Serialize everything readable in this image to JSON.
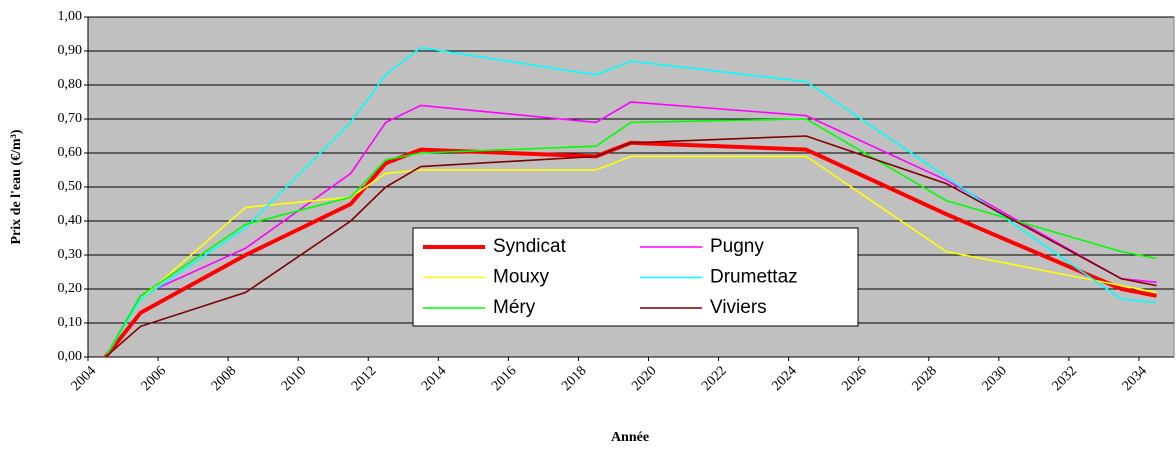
{
  "chart_data": {
    "type": "line",
    "x_label": "Année",
    "y_label": "Prix de l'eau (€/m³)",
    "x": [
      2004.5,
      2005.5,
      2008.5,
      2011.5,
      2012.5,
      2013.5,
      2018.5,
      2019.5,
      2024.5,
      2028.5,
      2033.5,
      2034.5
    ],
    "series": [
      {
        "name": "Syndicat",
        "color": "#ff0000",
        "values": [
          0,
          0.13,
          0.3,
          0.45,
          0.57,
          0.61,
          0.59,
          0.63,
          0.61,
          0.42,
          0.2,
          0.18
        ]
      },
      {
        "name": "Pugny",
        "color": "#ff00ff",
        "values": [
          0,
          0.18,
          0.32,
          0.54,
          0.69,
          0.74,
          0.69,
          0.75,
          0.71,
          0.52,
          0.23,
          0.22
        ]
      },
      {
        "name": "Mouxy",
        "color": "#ffff00",
        "values": [
          0,
          0.17,
          0.44,
          0.47,
          0.54,
          0.55,
          0.55,
          0.59,
          0.59,
          0.31,
          0.21,
          0.19
        ]
      },
      {
        "name": "Drumettaz",
        "color": "#00ffff",
        "values": [
          0,
          0.17,
          0.38,
          0.69,
          0.83,
          0.91,
          0.83,
          0.87,
          0.81,
          0.53,
          0.17,
          0.16
        ]
      },
      {
        "name": "Méry",
        "color": "#00ff00",
        "values": [
          0,
          0.18,
          0.39,
          0.47,
          0.58,
          0.6,
          0.62,
          0.69,
          0.7,
          0.46,
          0.31,
          0.29
        ]
      },
      {
        "name": "Viviers",
        "color": "#800000",
        "values": [
          0,
          0.09,
          0.19,
          0.4,
          0.5,
          0.56,
          0.59,
          0.63,
          0.65,
          0.51,
          0.23,
          0.21
        ]
      }
    ],
    "xlim": [
      2004,
      2035
    ],
    "xticks": [
      2004,
      2006,
      2008,
      2010,
      2012,
      2014,
      2016,
      2018,
      2020,
      2022,
      2024,
      2026,
      2028,
      2030,
      2032,
      2034
    ],
    "ylim": [
      0,
      1
    ],
    "yticks": [
      {
        "value": 0,
        "label": "0,00"
      },
      {
        "value": 0.1,
        "label": "0,10"
      },
      {
        "value": 0.2,
        "label": "0,20"
      },
      {
        "value": 0.3,
        "label": "0,30"
      },
      {
        "value": 0.4,
        "label": "0,40"
      },
      {
        "value": 0.5,
        "label": "0,50"
      },
      {
        "value": 0.6,
        "label": "0,60"
      },
      {
        "value": 0.7,
        "label": "0,70"
      },
      {
        "value": 0.8,
        "label": "0,80"
      },
      {
        "value": 0.9,
        "label": "0,90"
      },
      {
        "value": 1,
        "label": "1,00"
      }
    ],
    "grid": true,
    "background": "#c0c0c0"
  }
}
